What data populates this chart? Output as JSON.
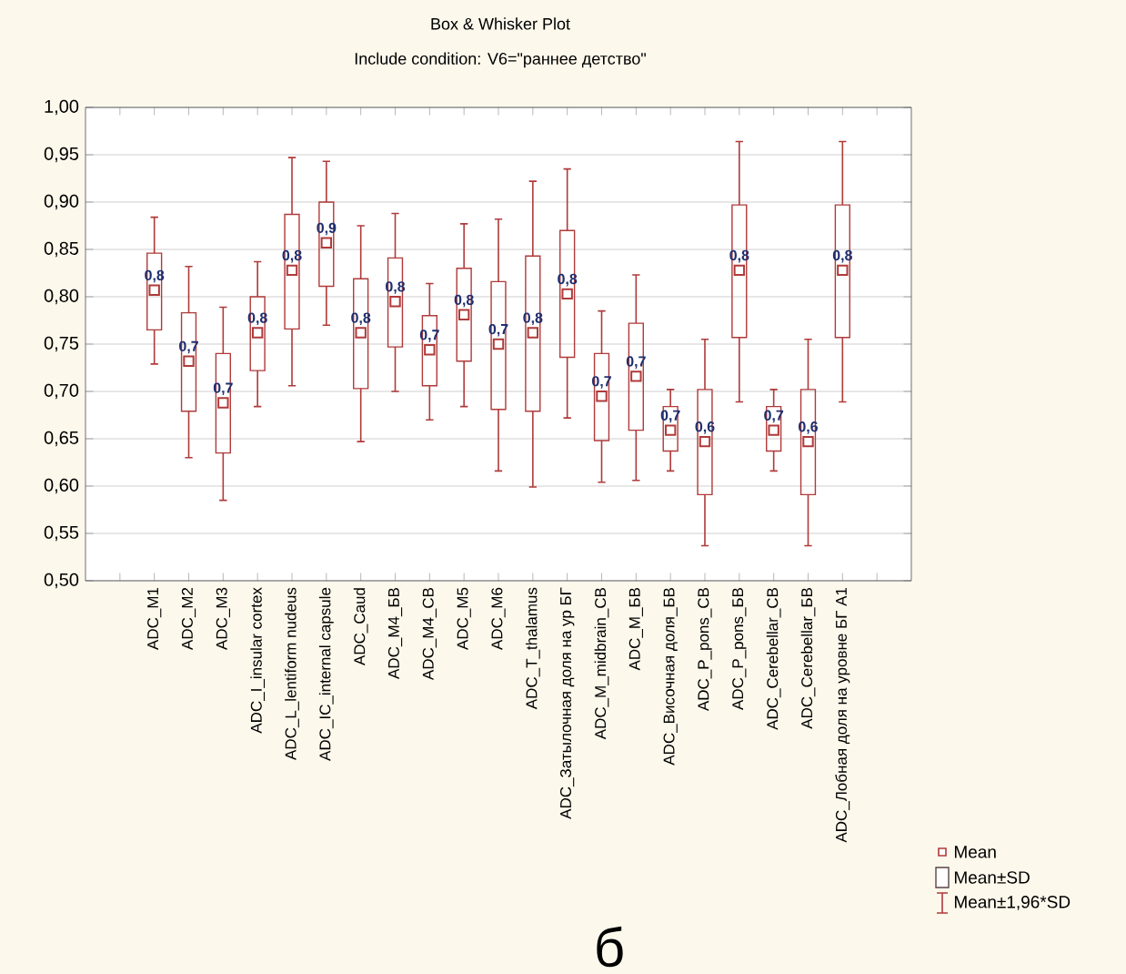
{
  "chart_data": {
    "type": "box",
    "title": "Box & Whisker Plot",
    "subtitle": "Include condition: V6=\"раннее детство\"",
    "categories": [
      "ADC_M1",
      "ADC_M2",
      "ADC_M3",
      "ADC_I_insular cortex",
      "ADC_L_lentiform nudeus",
      "ADC_IC_internal capsule",
      "ADC_Caud",
      "ADC_M4_БВ",
      "ADC_M4_СВ",
      "ADC_M5",
      "ADC_M6",
      "ADC_T_thalamus",
      "ADC_Затылочная доля на ур БГ",
      "ADC_M_midbrain_СВ",
      "ADC_M_БВ",
      "ADC_Височная доля_БВ",
      "ADC_P_pons_СВ",
      "ADC_P_pons_БВ",
      "ADC_Cerebellar_СВ",
      "ADC_Cerebellar_БВ",
      "ADC_Лобная доля на уровне БГ А1"
    ],
    "boxes": [
      {
        "low": 0.729,
        "q1": 0.765,
        "median": 0.807,
        "q3": 0.846,
        "high": 0.884
      },
      {
        "low": 0.63,
        "q1": 0.679,
        "median": 0.732,
        "q3": 0.783,
        "high": 0.832
      },
      {
        "low": 0.585,
        "q1": 0.635,
        "median": 0.688,
        "q3": 0.74,
        "high": 0.789
      },
      {
        "low": 0.684,
        "q1": 0.722,
        "median": 0.762,
        "q3": 0.8,
        "high": 0.837
      },
      {
        "low": 0.706,
        "q1": 0.766,
        "median": 0.828,
        "q3": 0.887,
        "high": 0.947
      },
      {
        "low": 0.77,
        "q1": 0.811,
        "median": 0.857,
        "q3": 0.9,
        "high": 0.943
      },
      {
        "low": 0.647,
        "q1": 0.703,
        "median": 0.762,
        "q3": 0.819,
        "high": 0.875
      },
      {
        "low": 0.7,
        "q1": 0.747,
        "median": 0.795,
        "q3": 0.841,
        "high": 0.888
      },
      {
        "low": 0.67,
        "q1": 0.706,
        "median": 0.744,
        "q3": 0.78,
        "high": 0.814
      },
      {
        "low": 0.684,
        "q1": 0.732,
        "median": 0.781,
        "q3": 0.83,
        "high": 0.877
      },
      {
        "low": 0.616,
        "q1": 0.681,
        "median": 0.75,
        "q3": 0.816,
        "high": 0.882
      },
      {
        "low": 0.599,
        "q1": 0.679,
        "median": 0.762,
        "q3": 0.843,
        "high": 0.922
      },
      {
        "low": 0.672,
        "q1": 0.736,
        "median": 0.803,
        "q3": 0.87,
        "high": 0.935
      },
      {
        "low": 0.604,
        "q1": 0.648,
        "median": 0.695,
        "q3": 0.74,
        "high": 0.785
      },
      {
        "low": 0.606,
        "q1": 0.659,
        "median": 0.716,
        "q3": 0.772,
        "high": 0.823
      },
      {
        "low": 0.616,
        "q1": 0.637,
        "median": 0.659,
        "q3": 0.684,
        "high": 0.702
      },
      {
        "low": 0.537,
        "q1": 0.591,
        "median": 0.647,
        "q3": 0.702,
        "high": 0.755
      },
      {
        "low": 0.689,
        "q1": 0.757,
        "median": 0.828,
        "q3": 0.897,
        "high": 0.964
      },
      {
        "low": 0.616,
        "q1": 0.637,
        "median": 0.659,
        "q3": 0.684,
        "high": 0.702
      },
      {
        "low": 0.537,
        "q1": 0.591,
        "median": 0.647,
        "q3": 0.702,
        "high": 0.755
      },
      {
        "low": 0.689,
        "q1": 0.757,
        "median": 0.828,
        "q3": 0.897,
        "high": 0.964
      }
    ],
    "value_labels": [
      "0,8",
      "0,7",
      "0,7",
      "0,8",
      "0,8",
      "0,9",
      "0,8",
      "0,8",
      "0,7",
      "0,8",
      "0,7",
      "0,8",
      "0,8",
      "0,7",
      "0,7",
      "0,7",
      "0,6",
      "0,8",
      "0,7",
      "0,6",
      "0,8"
    ],
    "color": "#b03a3a",
    "ylim": [
      0.5,
      1.0
    ],
    "yticks": [
      {
        "value": 0.5,
        "label": "0,50"
      },
      {
        "value": 0.55,
        "label": "0,55"
      },
      {
        "value": 0.6,
        "label": "0,60"
      },
      {
        "value": 0.65,
        "label": "0,65"
      },
      {
        "value": 0.7,
        "label": "0,70"
      },
      {
        "value": 0.75,
        "label": "0,75"
      },
      {
        "value": 0.8,
        "label": "0,80"
      },
      {
        "value": 0.85,
        "label": "0,85"
      },
      {
        "value": 0.9,
        "label": "0,90"
      },
      {
        "value": 0.95,
        "label": "0,95"
      },
      {
        "value": 1.0,
        "label": "1,00"
      }
    ],
    "grid": "y",
    "annotations": [
      "Mean",
      "Mean±SD",
      "Mean±1,96*SD",
      "б"
    ]
  }
}
